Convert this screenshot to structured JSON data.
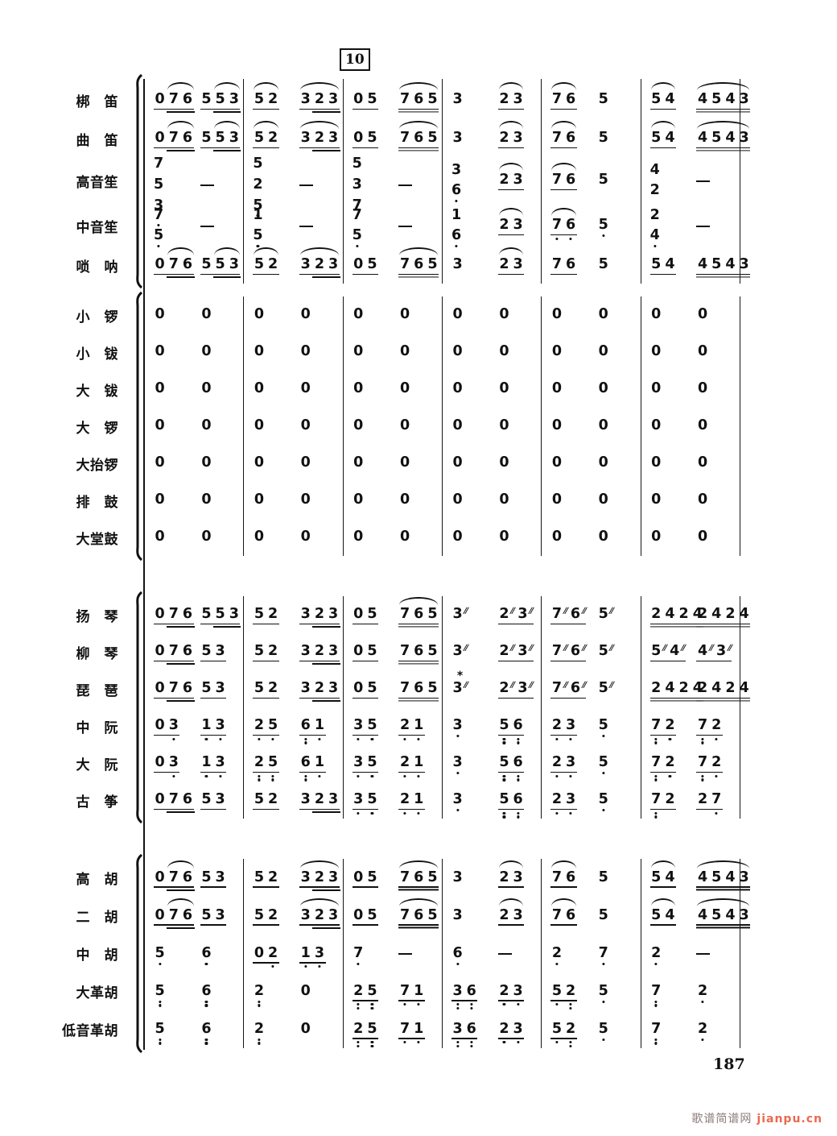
{
  "page": {
    "rehearsal_mark": "10",
    "page_number": "187",
    "watermark_cn": "歌谱简谱网",
    "watermark_url": "jianpu.cn",
    "watermark_cn_color": "#8b7d79",
    "watermark_url_color": "#e96a50",
    "ink_color": "#111111",
    "background_color": "#ffffff"
  },
  "notation_key": "events per measure separated by spaces; digits=jianpu notes, '-'=dash rest-line, '~'prefix=slur arc over event, '_'suffix=one beam underline, '='suffix=double beam underline, '(..)'=sub-group with extra beam and arc, '[..]'=sub-group with extra beam only, '.'=low octave dot, ':'=two low dots, '''=high octave dot, '/'=tremolo slashes, '*'=harmonic star, '{a,b}'=vertical chord stack",
  "systems": [
    {
      "name": "winds",
      "rows": [
        {
          "key": "bangdi",
          "label": "梆　笛",
          "measures": [
            "0(76)_ 5(53)_",
            "~52_ ~3[23]_",
            "05_ ~765=",
            "3 ~23_",
            "~76_ 5",
            "~54_ ~4543="
          ]
        },
        {
          "key": "qudi",
          "label": "曲　笛",
          "measures": [
            "0(76)_ 5(53)_",
            "~52_ ~3[23]_",
            "05_ ~765=",
            "3 ~23_",
            "~76_ 5",
            "~54_ ~4543="
          ]
        },
        {
          "key": "gaoyinsheng",
          "label": "高音笙",
          "measures": [
            "{7,5,3} -",
            "{5,2,5.} -",
            "{5,3,7} -",
            "{3,6.} ~23_",
            "~76_ 5",
            "{4,2} -"
          ]
        },
        {
          "key": "zhongyinsheng",
          "label": "中音笙",
          "measures": [
            "{7.,5.} -",
            "{1,5.} -",
            "{7,5.} -",
            "{1,6.} ~23_",
            "~7.6._ 5.",
            "{2,4.} -"
          ]
        },
        {
          "key": "suona",
          "label": "唢　呐",
          "measures": [
            "0(76)_ 5(53)_",
            "~52_ ~3[23]_",
            "05_ ~765=",
            "3 ~23_",
            "76_ 5",
            "54_ 4543="
          ]
        }
      ]
    },
    {
      "name": "percussion",
      "rows": [
        {
          "key": "xiaoluo",
          "label": "小　锣",
          "measures": [
            "0 0",
            "0 0",
            "0 0",
            "0 0",
            "0 0",
            "0 0"
          ]
        },
        {
          "key": "xiaobo",
          "label": "小　钹",
          "measures": [
            "0 0",
            "0 0",
            "0 0",
            "0 0",
            "0 0",
            "0 0"
          ]
        },
        {
          "key": "dabo",
          "label": "大　钹",
          "measures": [
            "0 0",
            "0 0",
            "0 0",
            "0 0",
            "0 0",
            "0 0"
          ]
        },
        {
          "key": "daluo",
          "label": "大　锣",
          "measures": [
            "0 0",
            "0 0",
            "0 0",
            "0 0",
            "0 0",
            "0 0"
          ]
        },
        {
          "key": "datailuo",
          "label": "大抬锣",
          "measures": [
            "0 0",
            "0 0",
            "0 0",
            "0 0",
            "0 0",
            "0 0"
          ]
        },
        {
          "key": "paigu",
          "label": "排　鼓",
          "measures": [
            "0 0",
            "0 0",
            "0 0",
            "0 0",
            "0 0",
            "0 0"
          ]
        },
        {
          "key": "datanggu",
          "label": "大堂鼓",
          "measures": [
            "0 0",
            "0 0",
            "0 0",
            "0 0",
            "0 0",
            "0 0"
          ]
        }
      ]
    },
    {
      "name": "plucked",
      "rows": [
        {
          "key": "yangqin",
          "label": "扬　琴",
          "measures": [
            "0[76]_ 5[53]_",
            "52_ 3[23]_",
            "05_ ~765=",
            "3/ 2/3/_",
            "7/6/_ 5/",
            "2424= 2424="
          ]
        },
        {
          "key": "liuqin",
          "label": "柳　琴",
          "measures": [
            "0[76]_ 53_",
            "52_ 3[23]_",
            "05_ 765=",
            "3'/ 2'/3'/_",
            "7/6/_ 5/",
            "5'/4'/_ 4'/3'/_"
          ]
        },
        {
          "key": "pipa",
          "label": "琵　琶",
          "measures": [
            "0[76]_ 53_",
            "52_ 3[23]_",
            "05_ 765=",
            "3*/ 2/3/_",
            "7/6/_ 5/",
            "2424= 2424="
          ]
        },
        {
          "key": "zhongruan",
          "label": "中　阮",
          "measures": [
            "03._ 1.3._",
            "2.5._ 6:1._",
            "3.5._ 2.1._",
            "3. 5:6:_",
            "2.3._ 5.",
            "7:2._ 7:2._"
          ]
        },
        {
          "key": "daruan",
          "label": "大　阮",
          "measures": [
            "03._ 1.3._",
            "2:5:_ 6:1._",
            "3.5._ 2.1._",
            "3. 5:6:_",
            "2.3._ 5.",
            "7:2._ 7:2._"
          ]
        },
        {
          "key": "guzheng",
          "label": "古　筝",
          "measures": [
            "0[76]_ 53_",
            "52_ 3[23]_",
            "3.5._ 2.1._",
            "3. 5:6:_",
            "2.3._ 5.",
            "7:2_ 27._"
          ]
        }
      ]
    },
    {
      "name": "bowed",
      "rows": [
        {
          "key": "gaohu",
          "label": "高　胡",
          "measures": [
            "0(76)_ 53_",
            "52_ ~3[23]_",
            "05_ ~765=",
            "3 ~23_",
            "~76_ 5",
            "~54_ ~4543="
          ]
        },
        {
          "key": "erhu",
          "label": "二　胡",
          "measures": [
            "0(76)_ 53_",
            "52_ ~3[23]_",
            "05_ ~765=",
            "3 ~23_",
            "~76_ 5",
            "~54_ ~4543="
          ]
        },
        {
          "key": "zhonghu",
          "label": "中　胡",
          "measures": [
            "5. 6.",
            "02._ 1.3._",
            "7. -",
            "6. -",
            "2. 7.",
            "2. -"
          ]
        },
        {
          "key": "dagehu",
          "label": "大革胡",
          "measures": [
            "5: 6:",
            "2: 0",
            "2:5:_ 7.1._",
            "3:6:_ 2.3._",
            "5.2:_ 5.",
            "7: 2."
          ]
        },
        {
          "key": "diyingehu",
          "label": "低音革胡",
          "measures": [
            "5: 6:",
            "2: 0",
            "2:5:_ 7.1._",
            "3:6:_ 2.3._",
            "5.2:_ 5.",
            "7: 2."
          ]
        }
      ]
    }
  ]
}
